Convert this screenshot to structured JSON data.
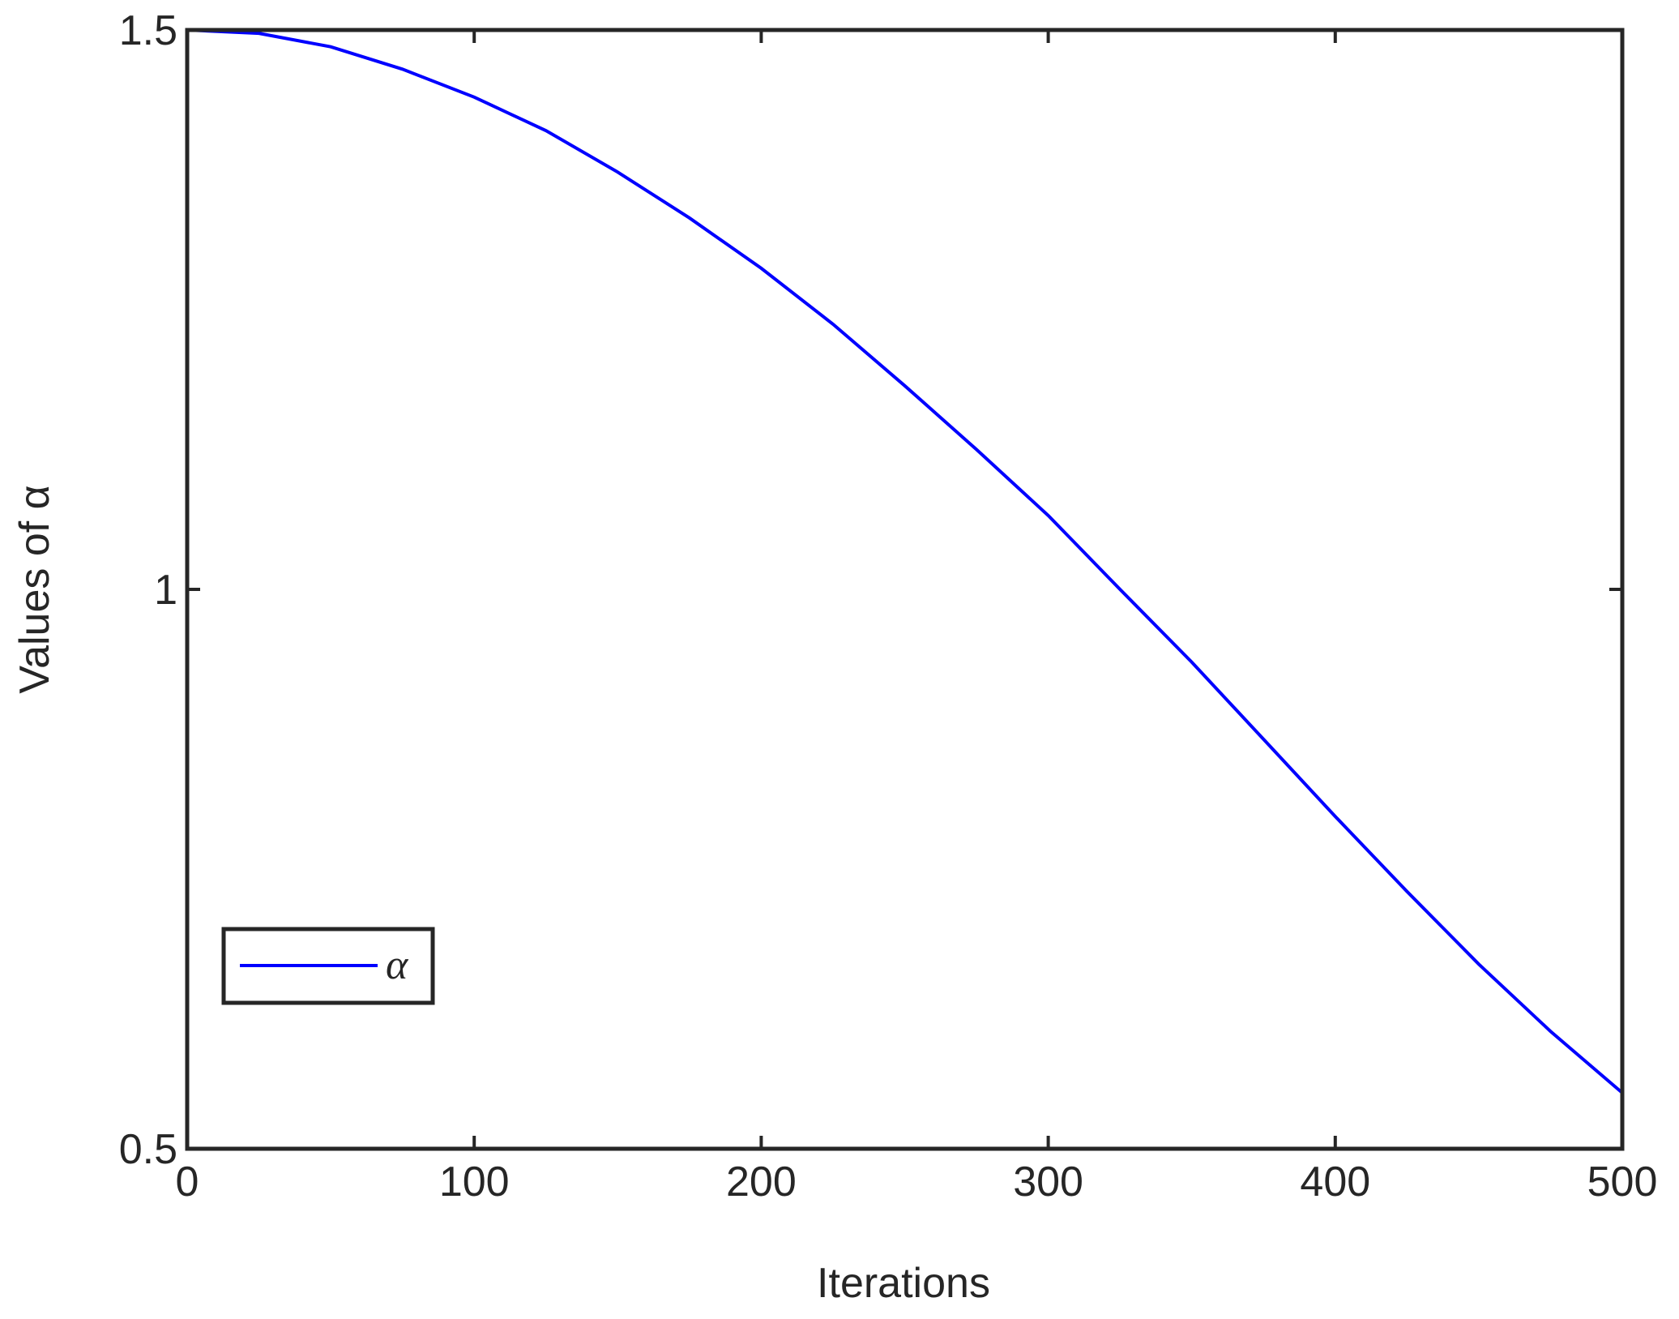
{
  "chart_data": {
    "type": "line",
    "x_label": "Iterations",
    "y_label": "Values of α",
    "x": [
      0,
      25,
      50,
      75,
      100,
      125,
      150,
      175,
      200,
      225,
      250,
      275,
      300,
      325,
      350,
      375,
      400,
      425,
      450,
      475,
      500
    ],
    "series": [
      {
        "name": "α",
        "color": "#0000ff",
        "values": [
          1.5,
          1.497,
          1.485,
          1.465,
          1.44,
          1.41,
          1.373,
          1.332,
          1.287,
          1.237,
          1.182,
          1.125,
          1.066,
          1.0,
          0.935,
          0.866,
          0.797,
          0.73,
          0.665,
          0.605,
          0.55
        ]
      }
    ],
    "xlim": [
      0,
      500
    ],
    "xticks": [
      0,
      100,
      200,
      300,
      400,
      500
    ],
    "ylim": [
      0.5,
      1.5
    ],
    "yticks": [
      0.5,
      1,
      1.5
    ],
    "grid": false,
    "legend": "lower left"
  }
}
